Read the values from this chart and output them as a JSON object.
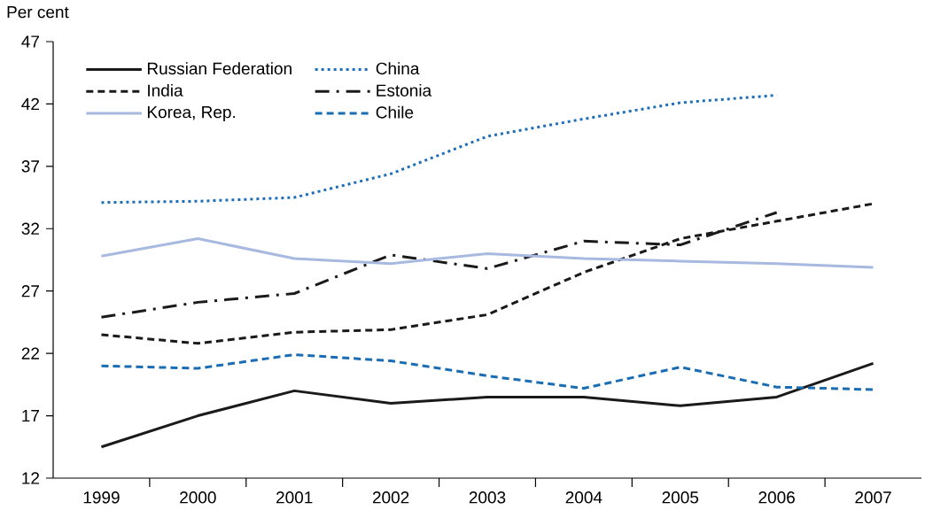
{
  "chart_data": {
    "type": "line",
    "ylabel": "Per cent",
    "categories": [
      "1999",
      "2000",
      "2001",
      "2002",
      "2003",
      "2004",
      "2005",
      "2006",
      "2007"
    ],
    "ylim": [
      12,
      47
    ],
    "yticks": [
      12,
      17,
      22,
      27,
      32,
      37,
      42,
      47
    ],
    "grid": false,
    "legend": "top left",
    "marker": "none",
    "series": [
      {
        "name": "Russian Federation",
        "color": "#1a1a1a",
        "line_style": "solid",
        "values": [
          14.5,
          17.0,
          19.0,
          18.0,
          18.5,
          18.5,
          17.8,
          18.5,
          21.2
        ]
      },
      {
        "name": "China",
        "color": "#1f6fb8",
        "line_style": "dotted",
        "values": [
          34.1,
          34.2,
          34.5,
          36.4,
          39.4,
          40.8,
          42.1,
          42.7,
          null
        ]
      },
      {
        "name": "India",
        "color": "#1a1a1a",
        "line_style": "dashed",
        "values": [
          23.5,
          22.8,
          23.7,
          23.9,
          25.1,
          28.5,
          31.2,
          32.6,
          34.0
        ]
      },
      {
        "name": "Estonia",
        "color": "#1a1a1a",
        "line_style": "dashdot",
        "values": [
          24.9,
          26.1,
          26.8,
          29.9,
          28.8,
          31.0,
          30.7,
          33.3,
          null
        ]
      },
      {
        "name": "Korea, Rep.",
        "color": "#a7b9e0",
        "line_style": "solid",
        "values": [
          29.8,
          31.2,
          29.6,
          29.2,
          30.0,
          29.6,
          29.4,
          29.2,
          28.9
        ]
      },
      {
        "name": "Chile",
        "color": "#1a6db3",
        "line_style": "dashed",
        "values": [
          21.0,
          20.8,
          21.9,
          21.4,
          20.2,
          19.2,
          20.9,
          19.3,
          19.1
        ]
      }
    ]
  }
}
